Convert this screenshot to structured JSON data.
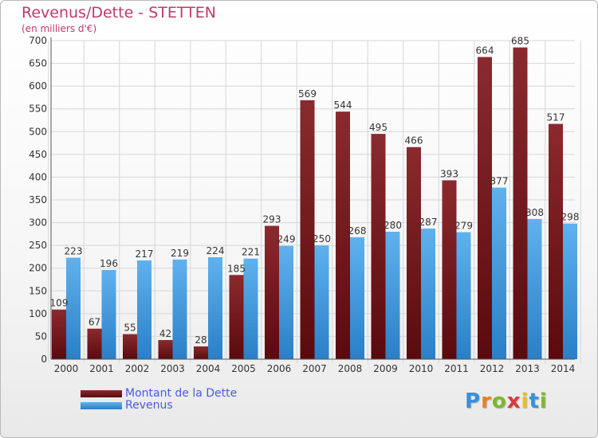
{
  "header": {
    "title": "Revenus/Dette - STETTEN",
    "subtitle": "(en milliers d'€)"
  },
  "colors": {
    "debt": "#7a1b1f",
    "revenue": "#3b95db",
    "title": "#c0396b",
    "legend_text": "#4a5be0"
  },
  "legend": {
    "items": [
      {
        "label": "Montant de la Dette",
        "color": "#7a1b1f"
      },
      {
        "label": "Revenus",
        "color": "#3b95db"
      }
    ]
  },
  "logo": {
    "letters": [
      {
        "ch": "P",
        "color": "#3b8fd8"
      },
      {
        "ch": "r",
        "color": "#e8841c"
      },
      {
        "ch": "o",
        "color": "#7ab82e"
      },
      {
        "ch": "x",
        "color": "#d83b3b"
      },
      {
        "ch": "i",
        "color": "#e8c21c"
      },
      {
        "ch": "t",
        "color": "#3b8fd8"
      },
      {
        "ch": "i",
        "color": "#7ab82e"
      }
    ]
  },
  "chart_data": {
    "type": "bar",
    "title": "Revenus/Dette - STETTEN",
    "subtitle": "(en milliers d'€)",
    "categories": [
      "2000",
      "2001",
      "2002",
      "2003",
      "2004",
      "2005",
      "2006",
      "2007",
      "2008",
      "2009",
      "2010",
      "2011",
      "2012",
      "2013",
      "2014"
    ],
    "series": [
      {
        "name": "Montant de la Dette",
        "values": [
          109,
          67,
          55,
          42,
          28,
          185,
          293,
          569,
          544,
          495,
          466,
          393,
          664,
          685,
          517
        ]
      },
      {
        "name": "Revenus",
        "values": [
          223,
          196,
          217,
          219,
          224,
          221,
          249,
          250,
          268,
          280,
          287,
          279,
          377,
          308,
          298
        ]
      }
    ],
    "yticks": [
      "0",
      "50",
      "100",
      "150",
      "200",
      "250",
      "300",
      "350",
      "400",
      "450",
      "500",
      "550",
      "600",
      "650",
      "700"
    ],
    "ylim": [
      0,
      700
    ],
    "grid": true,
    "legend_position": "bottom-left"
  }
}
